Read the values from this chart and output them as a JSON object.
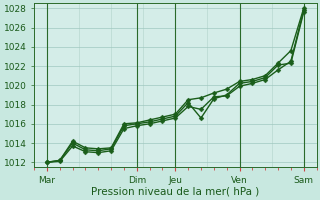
{
  "background_color": "#c8e8e0",
  "plot_area_bg": "#d4ede8",
  "grid_color": "#a0c8c0",
  "vgrid_color": "#b8d8d0",
  "line_color": "#1a5e1a",
  "dark_vline_color": "#2a6a2a",
  "xlabel": "Pression niveau de la mer( hPa )",
  "ylim": [
    1011.5,
    1028.5
  ],
  "yticks": [
    1012,
    1014,
    1016,
    1018,
    1020,
    1022,
    1024,
    1026,
    1028
  ],
  "xlim": [
    0,
    5.5
  ],
  "day_ticks_x": [
    0.25,
    2.0,
    2.75,
    4.0,
    5.25
  ],
  "day_labels": [
    "Mar",
    "Dim",
    "Jeu",
    "Ven",
    "Sam"
  ],
  "vline_x": [
    0.25,
    2.0,
    2.75,
    4.0,
    5.25
  ],
  "vgrid_x": [
    0.25,
    0.875,
    1.5,
    2.125,
    2.75,
    3.375,
    4.0,
    4.625,
    5.25
  ],
  "line1_x": [
    0.25,
    0.5,
    0.75,
    1.0,
    1.25,
    1.5,
    1.75,
    2.0,
    2.25,
    2.5,
    2.75,
    3.0,
    3.25,
    3.5,
    3.75,
    4.0,
    4.25,
    4.5,
    4.75,
    5.0,
    5.25
  ],
  "line1_y": [
    1012.0,
    1012.2,
    1014.0,
    1013.3,
    1013.2,
    1013.4,
    1015.8,
    1016.0,
    1016.2,
    1016.5,
    1016.8,
    1018.2,
    1016.6,
    1018.6,
    1019.0,
    1020.2,
    1020.4,
    1020.8,
    1022.1,
    1022.3,
    1027.6
  ],
  "line2_x": [
    0.25,
    0.5,
    0.75,
    1.0,
    1.25,
    1.5,
    1.75,
    2.0,
    2.25,
    2.5,
    2.75,
    3.0,
    3.25,
    3.5,
    3.75,
    4.0,
    4.25,
    4.5,
    4.75,
    5.0,
    5.25
  ],
  "line2_y": [
    1012.0,
    1012.2,
    1014.2,
    1013.5,
    1013.4,
    1013.5,
    1016.0,
    1016.1,
    1016.4,
    1016.7,
    1017.0,
    1018.5,
    1018.7,
    1019.2,
    1019.6,
    1020.4,
    1020.6,
    1021.0,
    1022.3,
    1023.6,
    1028.0
  ],
  "line3_x": [
    0.25,
    0.5,
    0.75,
    1.0,
    1.25,
    1.5,
    1.75,
    2.0,
    2.25,
    2.5,
    2.75,
    3.0,
    3.25,
    3.5,
    3.75,
    4.0,
    4.25,
    4.5,
    4.75,
    5.0,
    5.25
  ],
  "line3_y": [
    1012.0,
    1012.1,
    1013.7,
    1013.1,
    1013.0,
    1013.2,
    1015.5,
    1015.8,
    1016.0,
    1016.3,
    1016.6,
    1017.8,
    1017.5,
    1018.8,
    1018.9,
    1019.9,
    1020.2,
    1020.6,
    1021.6,
    1022.5,
    1027.8
  ],
  "marker": "D",
  "marker_size": 2.5,
  "line_width": 1.0,
  "fontsize_label": 7.5,
  "fontsize_tick": 6.5
}
